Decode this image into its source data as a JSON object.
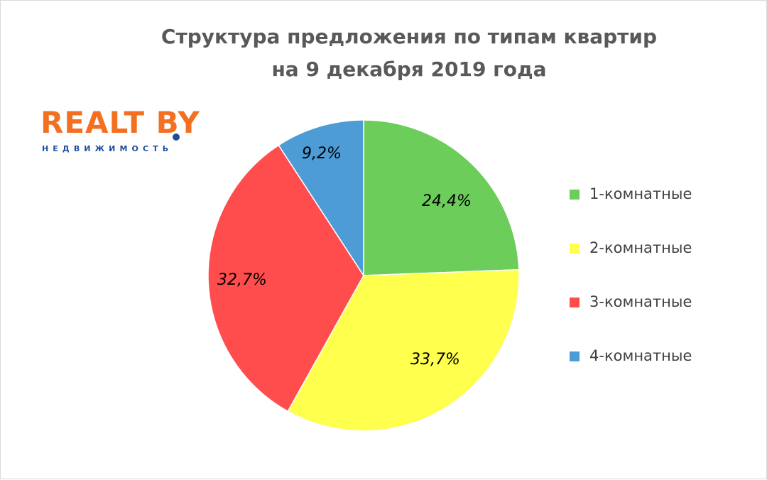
{
  "chart_data": {
    "type": "pie",
    "title": "Структура предложения по типам квартир на 9 декабря 2019 года",
    "title_lines": [
      "Структура предложения по типам квартир",
      "на 9 декабря 2019 года"
    ],
    "categories": [
      "1-комнатные",
      "2-комнатные",
      "3-комнатные",
      "4-комнатные"
    ],
    "values": [
      24.4,
      33.7,
      32.7,
      9.2
    ],
    "value_labels": [
      "24,4%",
      "33,7%",
      "32,7%",
      "9,2%"
    ],
    "colors": [
      "#6ccd5a",
      "#ffff4d",
      "#ff4d4d",
      "#4e9cd6"
    ],
    "legend": "right",
    "start_angle_deg": 0,
    "direction": "clockwise"
  },
  "logo": {
    "main": "REALT BY",
    "sub": "НЕДВИЖИМОСТЬ"
  }
}
